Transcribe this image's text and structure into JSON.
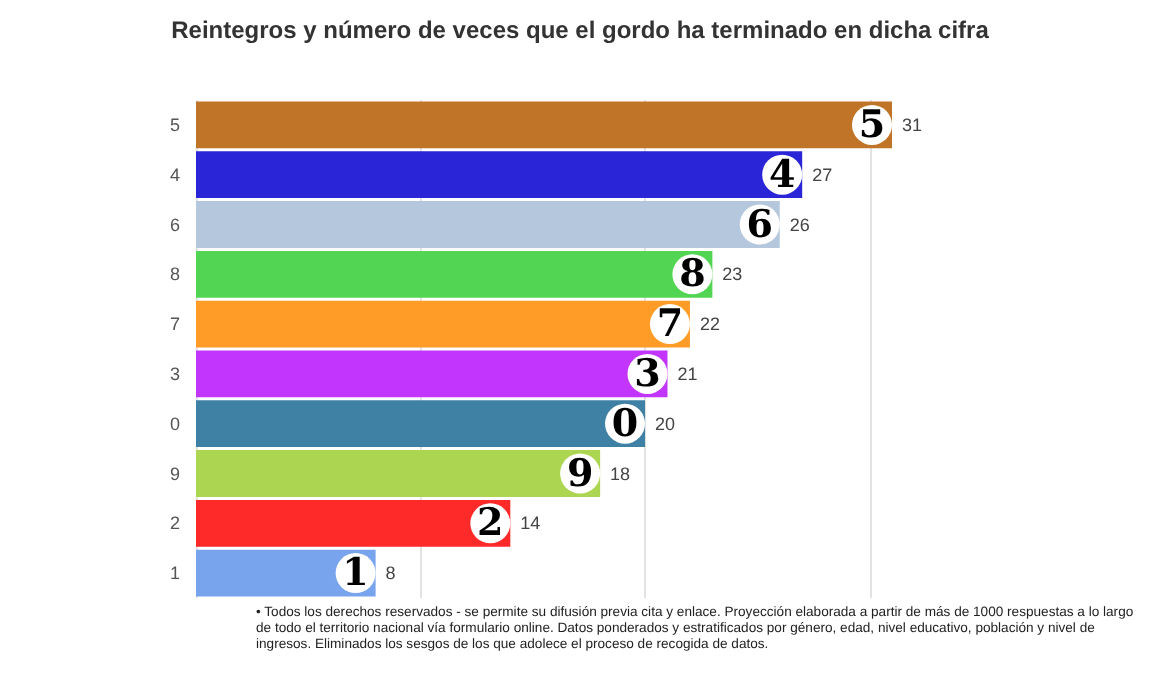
{
  "chart_data": {
    "type": "bar",
    "orientation": "horizontal",
    "title": "Reintegros y número de veces que el gordo ha terminado en dicha cifra",
    "categories": [
      "5",
      "4",
      "6",
      "8",
      "7",
      "3",
      "0",
      "9",
      "2",
      "1"
    ],
    "values": [
      31,
      27,
      26,
      23,
      22,
      21,
      20,
      18,
      14,
      8
    ],
    "colors": [
      "#c07428",
      "#2a25d6",
      "#b4c7dc",
      "#52d552",
      "#fe9c27",
      "#c135fc",
      "#3f80a5",
      "#acd552",
      "#fe2a2a",
      "#78a3ed"
    ],
    "xticks": [
      {
        "value": 0,
        "label": null
      },
      {
        "value": 10,
        "label": null
      },
      {
        "value": 20,
        "label": null
      },
      {
        "value": 30,
        "label": null
      }
    ],
    "tick_labels": "y",
    "grid": "x",
    "data_labels": true,
    "annotations": [
      "• Todos los derechos reservados - se permite su difusión previa cita y enlace. Proyección elaborada a partir de más de 1000 respuestas a lo largo de todo el territorio nacional vía formulario online. Datos ponderados y estratificados por género, edad, nivel educativo, población y nivel de ingresos. Eliminados los sesgos de los que adolece el proceso de recogida de datos."
    ]
  }
}
